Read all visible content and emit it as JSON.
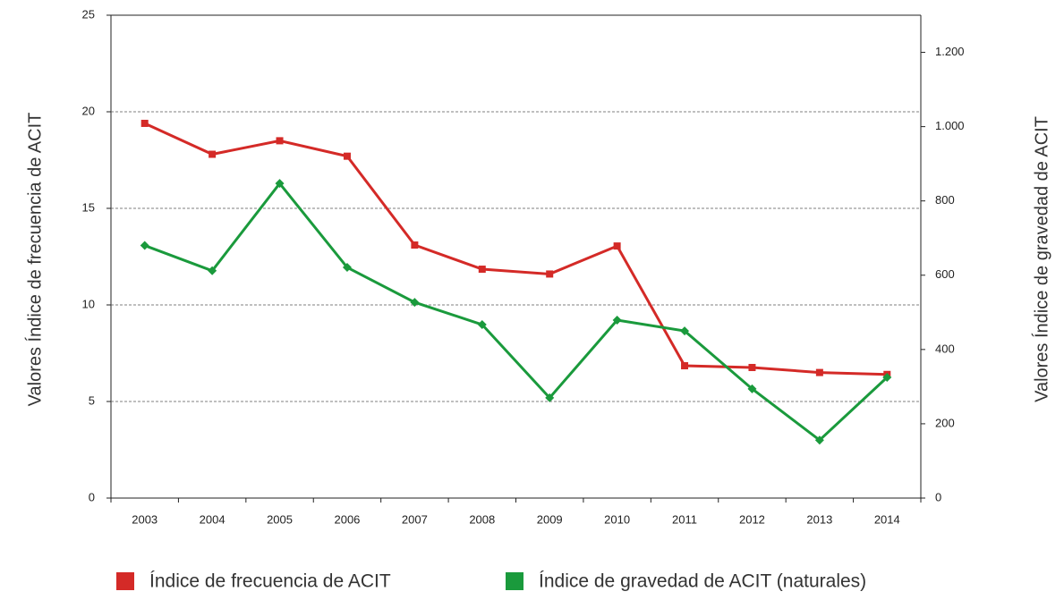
{
  "chart_data": {
    "type": "line",
    "categories": [
      "2003",
      "2004",
      "2005",
      "2006",
      "2007",
      "2008",
      "2009",
      "2010",
      "2011",
      "2012",
      "2013",
      "2014"
    ],
    "series": [
      {
        "name": "Índice de frecuencia de ACIT",
        "color": "#d42a27",
        "marker": "square",
        "axis": "y",
        "values": [
          19.4,
          17.8,
          18.5,
          17.7,
          13.1,
          11.85,
          11.6,
          13.05,
          6.85,
          6.76,
          6.5,
          6.4
        ]
      },
      {
        "name": "Índice de gravedad de ACIT (naturales)",
        "color": "#1a9a3c",
        "marker": "diamond",
        "axis": "y2",
        "values": [
          680,
          612,
          847,
          621,
          527,
          467,
          270,
          479,
          450,
          294,
          156,
          325
        ]
      }
    ],
    "ylabel": "Valores Índice de frecuencia de ACIT",
    "y2label": "Valores Índice de gravedad de ACIT",
    "ylim": [
      0,
      25
    ],
    "yticks": [
      0,
      5,
      10,
      15,
      20,
      25
    ],
    "y2lim": [
      0,
      1300
    ],
    "y2ticks": [
      0,
      200,
      400,
      600,
      800,
      {
        "value": 1000,
        "label": "1.000"
      },
      {
        "value": 1200,
        "label": "1.200"
      }
    ],
    "grid": true,
    "legend": "bottom"
  }
}
